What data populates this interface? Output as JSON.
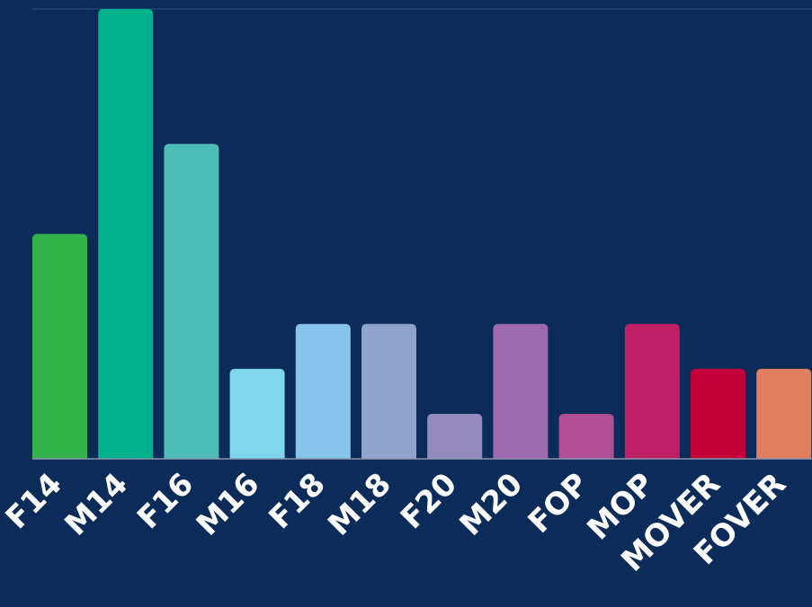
{
  "chart_data": {
    "type": "bar",
    "title": "",
    "xlabel": "",
    "ylabel": "",
    "categories": [
      "F14",
      "M14",
      "F16",
      "M16",
      "F18",
      "M18",
      "F20",
      "M20",
      "FOP",
      "MOP",
      "MOVER",
      "FOVER"
    ],
    "values": [
      5,
      10,
      7,
      2,
      3,
      3,
      1,
      3,
      1,
      3,
      2,
      2
    ],
    "ylim": [
      0,
      10
    ],
    "colors": [
      "#33b24a",
      "#00b28c",
      "#4dbdb6",
      "#80d6ea",
      "#87c4ea",
      "#8fa3cd",
      "#958bbf",
      "#9d6bad",
      "#b04f95",
      "#bf1f67",
      "#c4003a",
      "#e17f5f"
    ],
    "grid": false,
    "background": "#0b2b59",
    "axis_color": "#8a94ad"
  }
}
